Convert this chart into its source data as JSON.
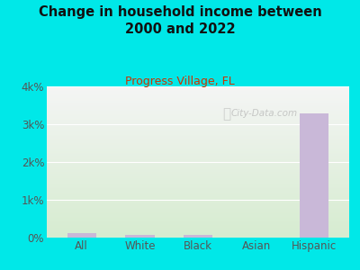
{
  "title": "Change in household income between\n2000 and 2022",
  "subtitle": "Progress Village, FL",
  "categories": [
    "All",
    "White",
    "Black",
    "Asian",
    "Hispanic"
  ],
  "values": [
    120,
    80,
    70,
    0,
    3280
  ],
  "bar_color": "#c9b8d8",
  "background_color": "#00e8e8",
  "plot_bg_top": "#f5f5f5",
  "plot_bg_bottom": "#d6ecd0",
  "title_color": "#111111",
  "subtitle_color": "#cc3300",
  "tick_label_color": "#555555",
  "ylim": [
    0,
    4000
  ],
  "yticks": [
    0,
    1000,
    2000,
    3000,
    4000
  ],
  "ytick_labels": [
    "0%",
    "1k%",
    "2k%",
    "3k%",
    "4k%"
  ],
  "watermark": "City-Data.com"
}
